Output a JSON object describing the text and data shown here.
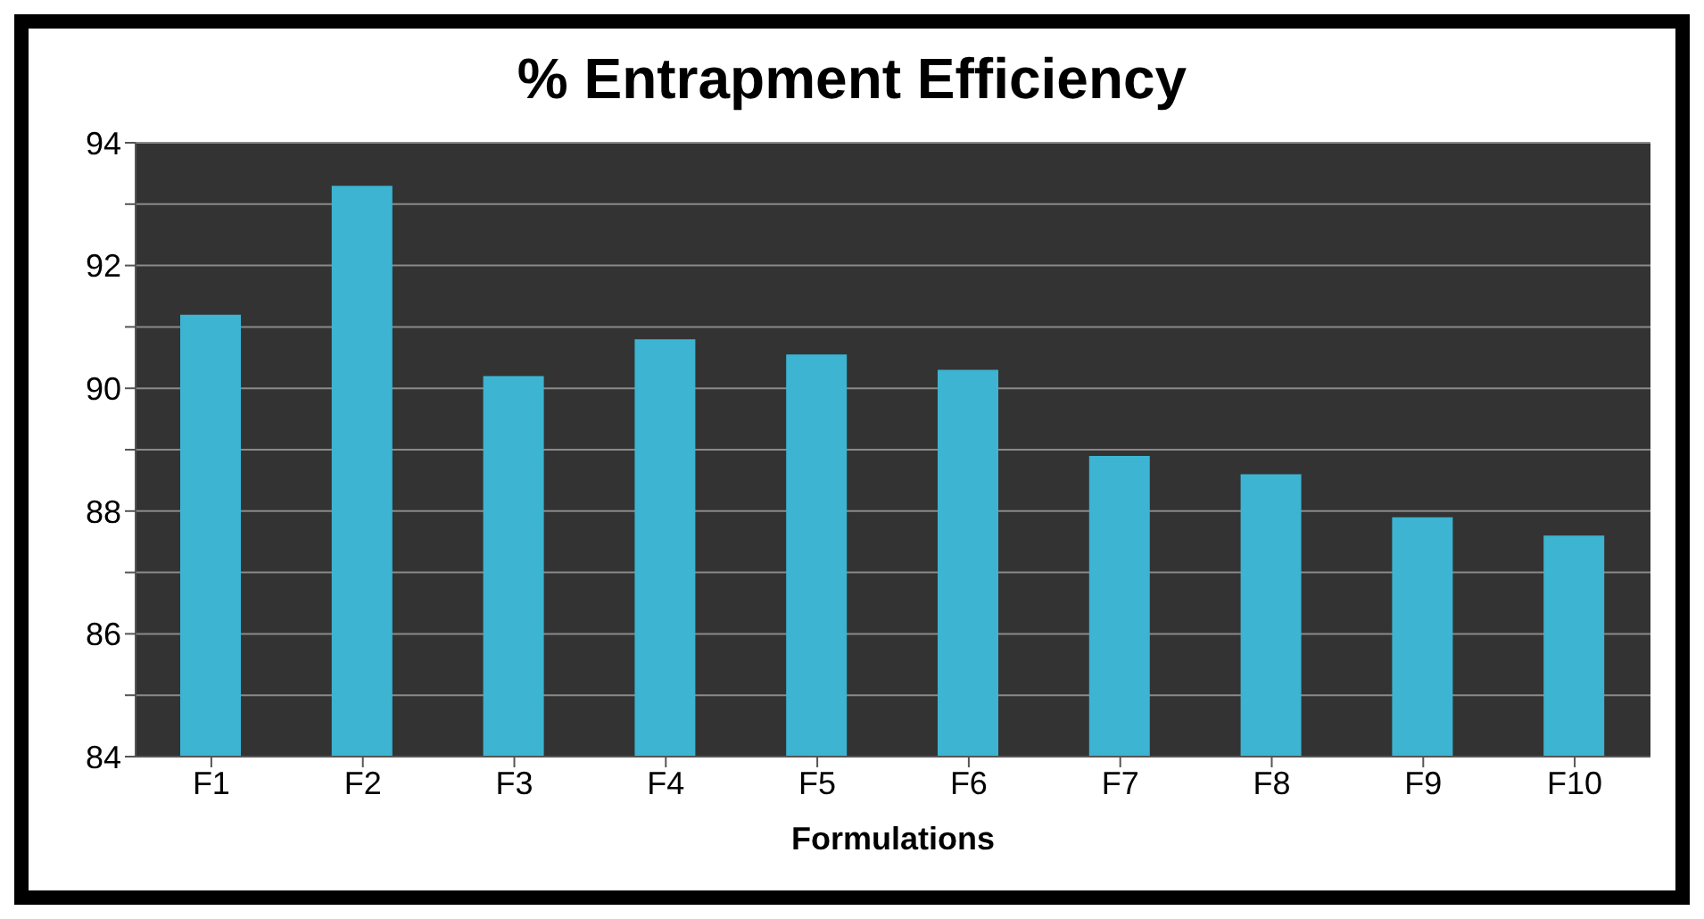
{
  "chart_data": {
    "type": "bar",
    "title": "% Entrapment Efficiency",
    "xlabel": "Formulations",
    "categories": [
      "F1",
      "F2",
      "F3",
      "F4",
      "F5",
      "F6",
      "F7",
      "F8",
      "F9",
      "F10"
    ],
    "values": [
      91.2,
      93.3,
      90.2,
      90.8,
      90.55,
      90.3,
      88.9,
      88.6,
      87.9,
      87.6
    ],
    "color": "#3cb4d2",
    "ylim": [
      84,
      94
    ],
    "yticks": [
      84,
      {
        "value": 85,
        "label": null
      },
      86,
      {
        "value": 87,
        "label": null
      },
      88,
      {
        "value": 89,
        "label": null
      },
      90,
      {
        "value": 91,
        "label": null
      },
      92,
      {
        "value": 93,
        "label": null
      },
      94
    ],
    "grid": "y",
    "legend": false
  }
}
